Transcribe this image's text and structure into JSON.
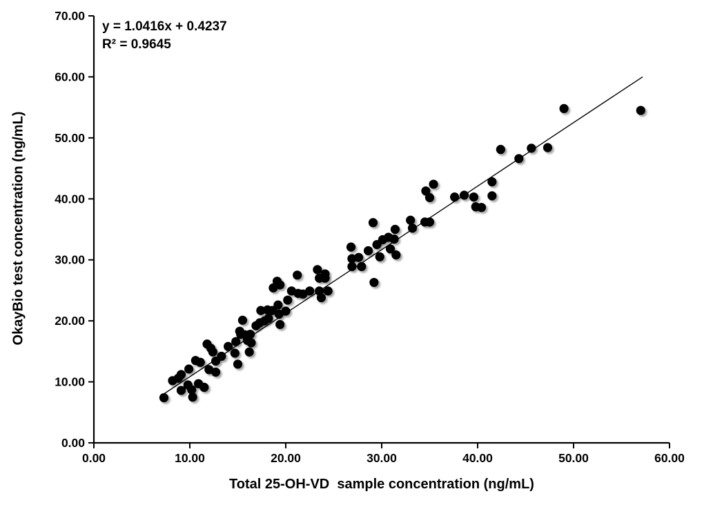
{
  "chart_data": {
    "type": "scatter",
    "title": "",
    "xlabel": "Total 25-OH-VD  sample concentration (ng/mL)",
    "ylabel": "OkayBio test concentration (ng/mL)",
    "annotation": {
      "equation": "y = 1.0416x + 0.4237",
      "r_squared": "R² = 0.9645"
    },
    "xlim": [
      0,
      60
    ],
    "ylim": [
      0,
      70
    ],
    "x_ticks": [
      "0.00",
      "10.00",
      "20.00",
      "30.00",
      "40.00",
      "50.00",
      "60.00"
    ],
    "y_ticks": [
      "0.00",
      "10.00",
      "20.00",
      "30.00",
      "40.00",
      "50.00",
      "60.00",
      "70.00"
    ],
    "grid": false,
    "legend": "none",
    "axis_color": "#000000",
    "marker": {
      "shape": "circle",
      "color": "#000000",
      "radius": 6.6,
      "shadow": true
    },
    "trendline": {
      "slope": 1.0416,
      "intercept": 0.4237,
      "x_start": 7.3,
      "x_end": 57.2,
      "color": "#000000"
    },
    "points": [
      [
        49.0,
        54.8
      ],
      [
        57.0,
        54.5
      ],
      [
        45.6,
        48.3
      ],
      [
        47.3,
        48.4
      ],
      [
        42.4,
        48.1
      ],
      [
        44.3,
        46.6
      ],
      [
        41.5,
        42.8
      ],
      [
        35.4,
        42.4
      ],
      [
        34.6,
        41.3
      ],
      [
        41.5,
        40.5
      ],
      [
        39.6,
        40.3
      ],
      [
        38.6,
        40.6
      ],
      [
        37.6,
        40.3
      ],
      [
        35.0,
        40.2
      ],
      [
        39.8,
        38.7
      ],
      [
        40.4,
        38.6
      ],
      [
        33.0,
        36.5
      ],
      [
        34.5,
        36.2
      ],
      [
        35.0,
        36.2
      ],
      [
        33.2,
        35.2
      ],
      [
        31.4,
        35.0
      ],
      [
        29.1,
        36.1
      ],
      [
        30.7,
        33.7
      ],
      [
        31.3,
        33.4
      ],
      [
        30.1,
        33.3
      ],
      [
        29.5,
        32.5
      ],
      [
        30.9,
        31.8
      ],
      [
        31.5,
        30.8
      ],
      [
        26.8,
        32.1
      ],
      [
        28.6,
        31.5
      ],
      [
        29.8,
        30.5
      ],
      [
        26.9,
        30.2
      ],
      [
        27.6,
        30.4
      ],
      [
        26.9,
        28.9
      ],
      [
        27.9,
        28.9
      ],
      [
        29.2,
        26.3
      ],
      [
        23.3,
        28.4
      ],
      [
        24.1,
        27.7
      ],
      [
        23.5,
        27.0
      ],
      [
        24.1,
        27.0
      ],
      [
        21.2,
        27.5
      ],
      [
        19.1,
        26.5
      ],
      [
        19.4,
        25.9
      ],
      [
        18.7,
        25.4
      ],
      [
        20.6,
        24.9
      ],
      [
        21.3,
        24.5
      ],
      [
        21.8,
        24.4
      ],
      [
        22.5,
        24.9
      ],
      [
        23.5,
        24.9
      ],
      [
        24.4,
        24.9
      ],
      [
        23.7,
        23.8
      ],
      [
        20.2,
        23.4
      ],
      [
        19.2,
        22.6
      ],
      [
        20.0,
        21.6
      ],
      [
        17.4,
        21.7
      ],
      [
        18.1,
        21.8
      ],
      [
        18.6,
        21.7
      ],
      [
        19.3,
        21.1
      ],
      [
        18.2,
        20.4
      ],
      [
        17.8,
        20.0
      ],
      [
        17.3,
        19.7
      ],
      [
        16.9,
        19.2
      ],
      [
        19.4,
        19.4
      ],
      [
        15.5,
        20.1
      ],
      [
        15.2,
        18.3
      ],
      [
        15.3,
        17.8
      ],
      [
        15.8,
        17.7
      ],
      [
        16.3,
        17.8
      ],
      [
        16.0,
        16.8
      ],
      [
        16.4,
        16.4
      ],
      [
        16.2,
        14.9
      ],
      [
        14.8,
        16.6
      ],
      [
        14.0,
        15.8
      ],
      [
        14.7,
        14.7
      ],
      [
        13.3,
        14.2
      ],
      [
        12.7,
        13.4
      ],
      [
        15.0,
        12.9
      ],
      [
        11.8,
        16.2
      ],
      [
        12.2,
        15.5
      ],
      [
        12.4,
        14.9
      ],
      [
        10.6,
        13.5
      ],
      [
        11.1,
        13.2
      ],
      [
        12.0,
        12.0
      ],
      [
        12.7,
        11.6
      ],
      [
        9.9,
        12.1
      ],
      [
        9.1,
        11.2
      ],
      [
        8.8,
        10.6
      ],
      [
        8.2,
        10.2
      ],
      [
        9.8,
        9.5
      ],
      [
        9.1,
        8.6
      ],
      [
        10.2,
        8.7
      ],
      [
        10.9,
        9.7
      ],
      [
        11.5,
        9.1
      ],
      [
        10.3,
        7.5
      ],
      [
        7.3,
        7.4
      ]
    ]
  }
}
